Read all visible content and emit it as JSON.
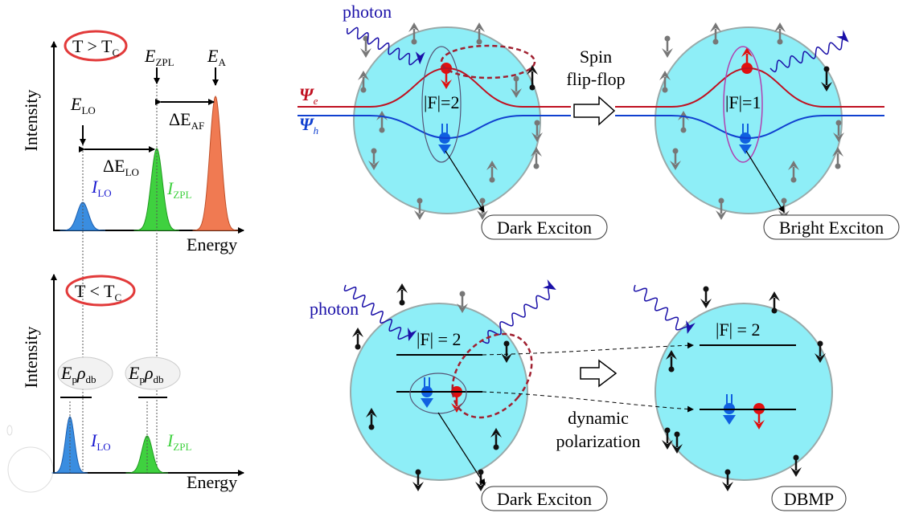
{
  "top_left": {
    "condition": {
      "main": "T > T",
      "sub": "C"
    },
    "y_axis": "Intensity",
    "x_axis": "Energy",
    "e_zpl": {
      "main": "E",
      "sub": "ZPL"
    },
    "e_a": {
      "main": "E",
      "sub": "A"
    },
    "e_lo": {
      "main": "E",
      "sub": "LO"
    },
    "delta_af": {
      "main": "ΔE",
      "sub": "AF"
    },
    "delta_lo": {
      "main": "ΔE",
      "sub": "LO"
    },
    "i_lo": {
      "main": "I",
      "sub": "LO"
    },
    "i_zpl": {
      "main": "I",
      "sub": "ZPL"
    }
  },
  "bottom_left": {
    "condition": {
      "main": "T < T",
      "sub": "C"
    },
    "y_axis": "Intensity",
    "x_axis": "Energy",
    "width_lo": {
      "e": "E",
      "e_sub": "p",
      "rho": "ρ",
      "rho_sub": "db"
    },
    "width_zpl": {
      "e": "E",
      "e_sub": "p",
      "rho": "ρ",
      "rho_sub": "db"
    },
    "i_lo": {
      "main": "I",
      "sub": "LO"
    },
    "i_zpl": {
      "main": "I",
      "sub": "ZPL"
    }
  },
  "top_right": {
    "photon": "photon",
    "psi_e": {
      "main": "Ψ",
      "sub": "e"
    },
    "psi_h": {
      "main": "Ψ",
      "sub": "h"
    },
    "dark_state": "|F|=2",
    "bright_state": "|F|=1",
    "transition": [
      "Spin",
      "flip-flop"
    ],
    "dark_exciton": "Dark Exciton",
    "bright_exciton": "Bright Exciton"
  },
  "bottom_right": {
    "photon": "photon",
    "level_left": "|F| = 2",
    "level_right": "|F| = 2",
    "process": [
      "dynamic",
      "polarization"
    ],
    "dark_exciton": "Dark Exciton",
    "dbmp": "DBMP"
  }
}
